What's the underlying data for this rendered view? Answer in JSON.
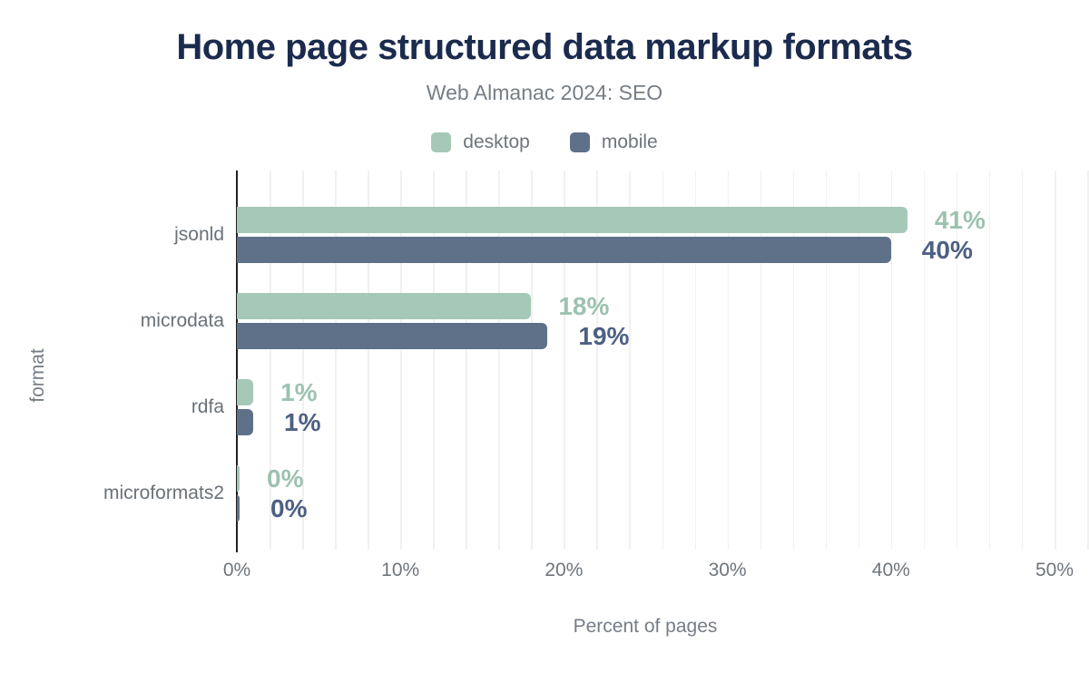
{
  "chart": {
    "title": "Home page structured data markup formats",
    "subtitle": "Web Almanac 2024: SEO"
  },
  "legend": {
    "items": [
      {
        "label": "desktop"
      },
      {
        "label": "mobile"
      }
    ]
  },
  "axes": {
    "x_label": "Percent of pages",
    "y_label": "format"
  },
  "colors": {
    "title_text": "#1b2b4e",
    "subtitle_text": "#767d87",
    "axis_text": "#6e757d",
    "gridline": "#f1f1f1",
    "axis_line": "#212121",
    "desktop_bar": "#a6c8b7",
    "mobile_bar": "#5e7188",
    "desktop_value_label": "#9dc2b0",
    "mobile_value_label": "#4d6084"
  },
  "chart_data": {
    "type": "bar",
    "orientation": "horizontal",
    "title": "Home page structured data markup formats",
    "subtitle": "Web Almanac 2024: SEO",
    "xlabel": "Percent of pages",
    "ylabel": "format",
    "categories": [
      "jsonld",
      "microdata",
      "rdfa",
      "microformats2"
    ],
    "series": [
      {
        "name": "desktop",
        "values": [
          41,
          18,
          1,
          0
        ]
      },
      {
        "name": "mobile",
        "values": [
          40,
          19,
          1,
          0
        ]
      }
    ],
    "value_label_format": "percent",
    "xlim": [
      0,
      50
    ],
    "xticks": [
      0,
      10,
      20,
      30,
      40,
      50
    ],
    "xtick_labels": [
      "0%",
      "10%",
      "20%",
      "30%",
      "40%",
      "50%"
    ],
    "grid": "vertical, minor every 2%",
    "legend_position": "top"
  }
}
